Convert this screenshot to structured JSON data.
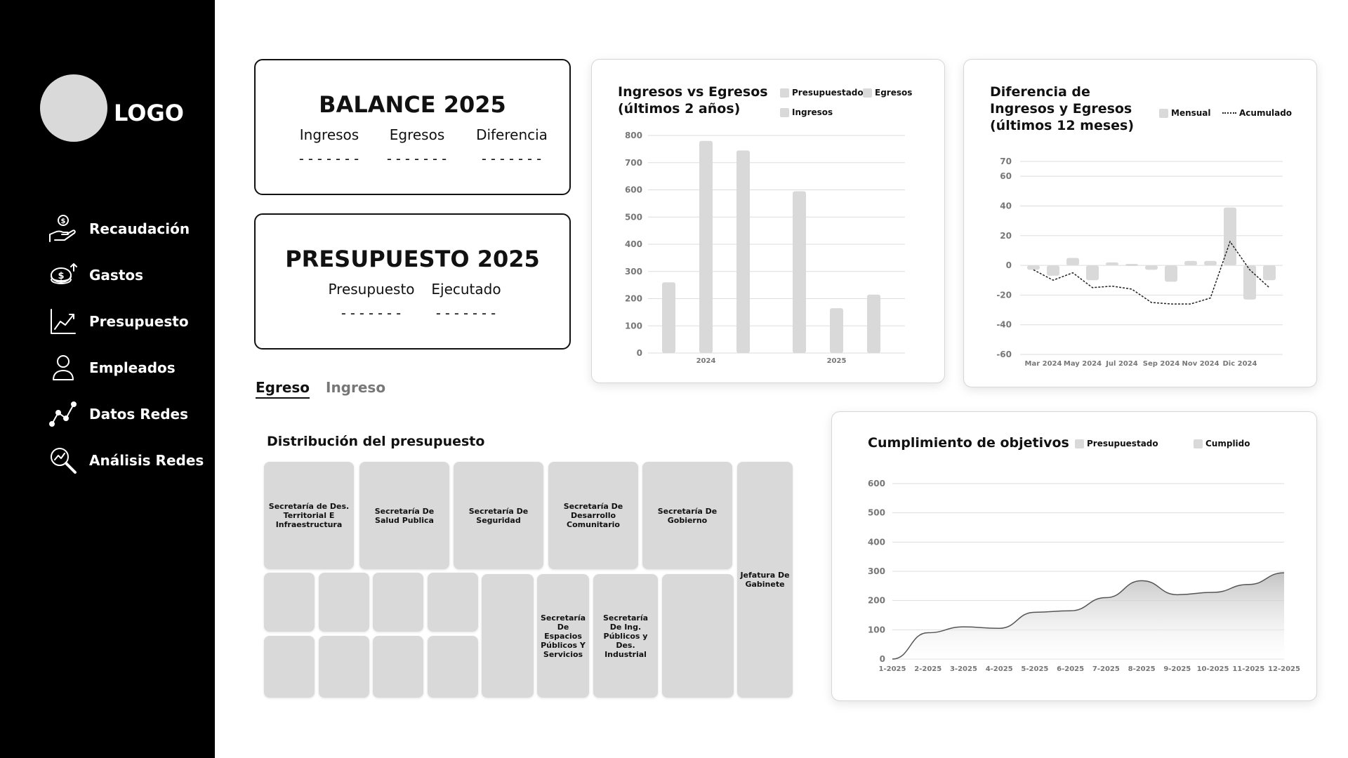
{
  "sidebar": {
    "logo_text": "LOGO",
    "items": [
      {
        "label": "Recaudación",
        "icon": "hand-money-icon"
      },
      {
        "label": "Gastos",
        "icon": "coins-icon"
      },
      {
        "label": "Presupuesto",
        "icon": "line-chart-icon"
      },
      {
        "label": "Empleados",
        "icon": "person-icon"
      },
      {
        "label": "Datos Redes",
        "icon": "network-graph-icon"
      },
      {
        "label": "Análisis Redes",
        "icon": "magnifier-chart-icon"
      }
    ]
  },
  "balance": {
    "title": "BALANCE 2025",
    "columns": [
      {
        "label": "Ingresos",
        "value": "-------"
      },
      {
        "label": "Egresos",
        "value": "-------"
      },
      {
        "label": "Diferencia",
        "value": "-------"
      }
    ]
  },
  "presupuesto": {
    "title": "PRESUPUESTO 2025",
    "columns": [
      {
        "label": "Presupuesto",
        "value": "-------"
      },
      {
        "label": "Ejecutado",
        "value": "-------"
      }
    ]
  },
  "tabs": [
    {
      "label": "Egreso",
      "active": true
    },
    {
      "label": "Ingreso",
      "active": false
    }
  ],
  "colors": {
    "sidebar_bg": "#000000",
    "bar_fill": "#d9d9d9",
    "grid": "#dddddd",
    "line": "#555555"
  },
  "chart_data": [
    {
      "id": "ingresos-egresos",
      "type": "bar",
      "title_lines": [
        "Ingresos vs Egresos",
        "(últimos 2 años)"
      ],
      "legend": [
        "Presupuestado",
        "Egresos",
        "Ingresos"
      ],
      "legend_placement": "top-right",
      "x_tick_labels": [
        "2024",
        "2025"
      ],
      "y_ticks": [
        0,
        100,
        200,
        300,
        400,
        500,
        600,
        700,
        800
      ],
      "ylim": [
        0,
        800
      ],
      "grid": true,
      "groups": [
        {
          "label": "2024",
          "values": [
            260,
            780,
            745
          ]
        },
        {
          "label": "2025",
          "values": [
            595,
            165,
            215
          ]
        }
      ]
    },
    {
      "id": "diferencia",
      "type": "bar",
      "title_lines": [
        "Diferencia de",
        "Ingresos y Egresos",
        "(últimos 12 meses)"
      ],
      "legend": [
        "Mensual",
        "Acumulado"
      ],
      "legend_placement": "top-right",
      "x_tick_labels": [
        "Mar 2024",
        "May 2024",
        "Jul 2024",
        "Sep 2024",
        "Nov 2024",
        "Dic 2024"
      ],
      "y_ticks": [
        70,
        60,
        40,
        20,
        0,
        -20,
        -40,
        -60
      ],
      "ylim": [
        -60,
        70
      ],
      "grid": true,
      "mensual": [
        -3,
        -7,
        5,
        -10,
        2,
        1,
        -3,
        -11,
        3,
        3,
        39,
        -23,
        -10
      ],
      "acumulado": [
        -3,
        -10,
        -5,
        -15,
        -14,
        -16,
        -25,
        -26,
        -26,
        -22,
        16,
        -3,
        -15
      ]
    },
    {
      "id": "cumplimiento",
      "type": "area",
      "title": "Cumplimiento de objetivos",
      "legend": [
        "Presupuestado",
        "Cumplido"
      ],
      "legend_placement": "top",
      "x": [
        "1-2025",
        "2-2025",
        "3-2025",
        "4-2025",
        "5-2025",
        "6-2025",
        "7-2025",
        "8-2025",
        "9-2025",
        "10-2025",
        "11-2025",
        "12-2025"
      ],
      "y_ticks": [
        0,
        100,
        200,
        300,
        400,
        500,
        600
      ],
      "ylim": [
        0,
        600
      ],
      "grid": true,
      "values": [
        0,
        90,
        110,
        105,
        160,
        165,
        210,
        268,
        220,
        228,
        255,
        295
      ]
    }
  ],
  "treemap": {
    "title": "Distribución del presupuesto",
    "cells": [
      {
        "label": "Secretaría de Des. Territorial E Infraestructura"
      },
      {
        "label": "Secretaría De Salud Publica"
      },
      {
        "label": "Secretaría De Seguridad"
      },
      {
        "label": "Secretaría De Desarrollo Comunitario"
      },
      {
        "label": "Secretaría De Gobierno"
      },
      {
        "label": "Jefatura De Gabinete"
      },
      {
        "label": ""
      },
      {
        "label": ""
      },
      {
        "label": ""
      },
      {
        "label": ""
      },
      {
        "label": ""
      },
      {
        "label": ""
      },
      {
        "label": ""
      },
      {
        "label": ""
      },
      {
        "label": ""
      },
      {
        "label": "Secretaría De Espacios Públicos Y Servicios"
      },
      {
        "label": "Secretaría De Ing. Públicos y Des. Industrial"
      },
      {
        "label": ""
      }
    ]
  }
}
